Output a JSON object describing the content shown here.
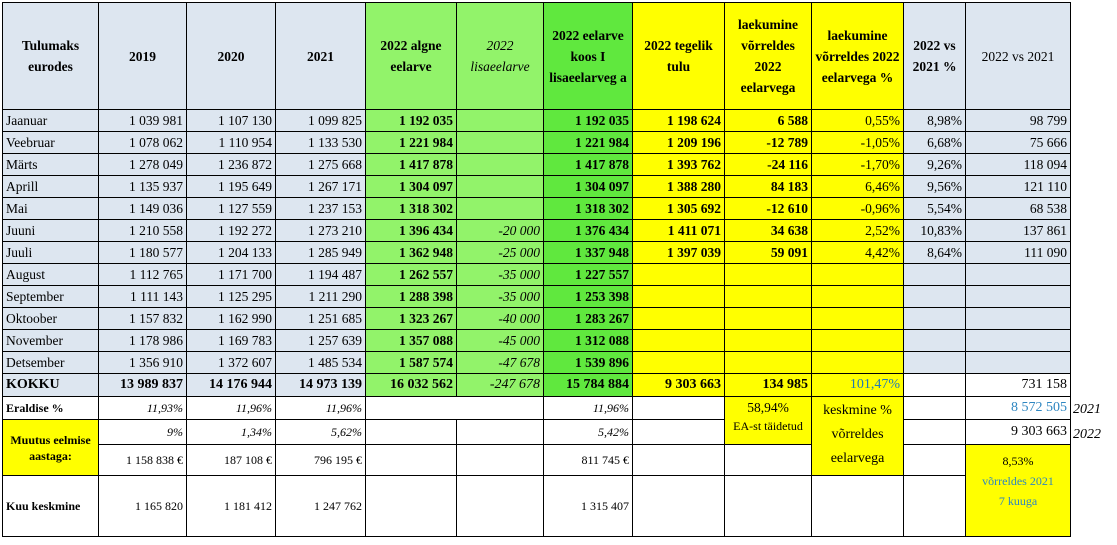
{
  "headers": {
    "c0": "Tulumaks eurodes",
    "c1": "2019",
    "c2": "2020",
    "c3": "2021",
    "c4": "2022 algne eelarve",
    "c5": "2022 lisaeelarve",
    "c6": "2022 eelarve koos I lisaeelarveg a",
    "c7": "2022 tegelik tulu",
    "c8": "laekumine võrreldes 2022 eelarvega",
    "c9": "laekumine võrreldes 2022 eelarvega %",
    "c10": "2022 vs 2021 %",
    "c11": "2022 vs 2021"
  },
  "months": [
    {
      "name": "Jaanuar",
      "y2019": "1 039 981",
      "y2020": "1 107 130",
      "y2021": "1 099 825",
      "algne": "1 192 035",
      "lisa": "",
      "koos": "1 192 035",
      "tegelik": "1 198 624",
      "vahe": "6 588",
      "vahe_pct": "0,55%",
      "vs_pct": "8,98%",
      "vs": "98 799"
    },
    {
      "name": "Veebruar",
      "y2019": "1 078 062",
      "y2020": "1 110 954",
      "y2021": "1 133 530",
      "algne": "1 221 984",
      "lisa": "",
      "koos": "1 221 984",
      "tegelik": "1 209 196",
      "vahe": "-12 789",
      "vahe_pct": "-1,05%",
      "vs_pct": "6,68%",
      "vs": "75 666"
    },
    {
      "name": "Märts",
      "y2019": "1 278 049",
      "y2020": "1 236 872",
      "y2021": "1 275 668",
      "algne": "1 417 878",
      "lisa": "",
      "koos": "1 417 878",
      "tegelik": "1 393 762",
      "vahe": "-24 116",
      "vahe_pct": "-1,70%",
      "vs_pct": "9,26%",
      "vs": "118 094"
    },
    {
      "name": "Aprill",
      "y2019": "1 135 937",
      "y2020": "1 195 649",
      "y2021": "1 267 171",
      "algne": "1 304 097",
      "lisa": "",
      "koos": "1 304 097",
      "tegelik": "1 388 280",
      "vahe": "84 183",
      "vahe_pct": "6,46%",
      "vs_pct": "9,56%",
      "vs": "121 110"
    },
    {
      "name": "Mai",
      "y2019": "1 149 036",
      "y2020": "1 127 559",
      "y2021": "1 237 153",
      "algne": "1 318 302",
      "lisa": "",
      "koos": "1 318 302",
      "tegelik": "1 305 692",
      "vahe": "-12 610",
      "vahe_pct": "-0,96%",
      "vs_pct": "5,54%",
      "vs": "68 538"
    },
    {
      "name": "Juuni",
      "y2019": "1 210 558",
      "y2020": "1 192 272",
      "y2021": "1 273 210",
      "algne": "1 396 434",
      "lisa": "-20 000",
      "koos": "1 376 434",
      "tegelik": "1 411 071",
      "vahe": "34 638",
      "vahe_pct": "2,52%",
      "vs_pct": "10,83%",
      "vs": "137 861"
    },
    {
      "name": "Juuli",
      "y2019": "1 180 577",
      "y2020": "1 204 133",
      "y2021": "1 285 949",
      "algne": "1 362 948",
      "lisa": "-25 000",
      "koos": "1 337 948",
      "tegelik": "1 397 039",
      "vahe": "59 091",
      "vahe_pct": "4,42%",
      "vs_pct": "8,64%",
      "vs": "111 090"
    },
    {
      "name": "August",
      "y2019": "1 112 765",
      "y2020": "1 171 700",
      "y2021": "1 194 487",
      "algne": "1 262 557",
      "lisa": "-35 000",
      "koos": "1 227 557",
      "tegelik": "",
      "vahe": "",
      "vahe_pct": "",
      "vs_pct": "",
      "vs": ""
    },
    {
      "name": "September",
      "y2019": "1 111 143",
      "y2020": "1 125 295",
      "y2021": "1 211 290",
      "algne": "1 288 398",
      "lisa": "-35 000",
      "koos": "1 253 398",
      "tegelik": "",
      "vahe": "",
      "vahe_pct": "",
      "vs_pct": "",
      "vs": ""
    },
    {
      "name": "Oktoober",
      "y2019": "1 157 832",
      "y2020": "1 162 990",
      "y2021": "1 251 685",
      "algne": "1 323 267",
      "lisa": "-40 000",
      "koos": "1 283 267",
      "tegelik": "",
      "vahe": "",
      "vahe_pct": "",
      "vs_pct": "",
      "vs": ""
    },
    {
      "name": "November",
      "y2019": "1 178 986",
      "y2020": "1 169 783",
      "y2021": "1 257 639",
      "algne": "1 357 088",
      "lisa": "-45 000",
      "koos": "1 312 088",
      "tegelik": "",
      "vahe": "",
      "vahe_pct": "",
      "vs_pct": "",
      "vs": ""
    },
    {
      "name": "Detsember",
      "y2019": "1 356 910",
      "y2020": "1 372 607",
      "y2021": "1 485 534",
      "algne": "1 587 574",
      "lisa": "-47 678",
      "koos": "1 539 896",
      "tegelik": "",
      "vahe": "",
      "vahe_pct": "",
      "vs_pct": "",
      "vs": ""
    }
  ],
  "kokku": {
    "label": "KOKKU",
    "y2019": "13 989 837",
    "y2020": "14 176 944",
    "y2021": "14 973 139",
    "algne": "16 032 562",
    "lisa": "-247 678",
    "koos": "15 784 884",
    "tegelik": "9 303 663",
    "vahe": "134 985",
    "vahe_pct": "101,47%",
    "vs_pct": "",
    "vs": "731 158"
  },
  "eraldis": {
    "label": "Eraldise %",
    "y2019": "11,93%",
    "y2020": "11,96%",
    "y2021": "11,96%",
    "koos": "11,96%",
    "tegelik_pct": "58,94%",
    "tegelik_note": "EA-st täidetud",
    "keskmine_l1": "keskmine %",
    "keskmine_l2": "võrreldes",
    "keskmine_l3": "eelarvega",
    "vs_value": "8 572 505",
    "vs_year": "2021"
  },
  "muutus": {
    "label": "Muutus eelmise aastaga:",
    "y2019_pct": "9%",
    "y2020_pct": "1,34%",
    "y2021_pct": "5,62%",
    "koos_pct": "5,42%",
    "y2019_eur": "1 158 838 €",
    "y2020_eur": "187 108 €",
    "y2021_eur": "796 195 €",
    "koos_eur": "811 745 €",
    "vs_value": "9 303 663",
    "vs_year": "2022",
    "box_pct": "8,53%",
    "box_l1": "võrreldes 2021",
    "box_l2": "7 kuuga"
  },
  "keskmine": {
    "label": "Kuu keskmine",
    "y2019": "1 165 820",
    "y2020": "1 181 412",
    "y2021": "1 247 762",
    "koos": "1 315 407"
  }
}
